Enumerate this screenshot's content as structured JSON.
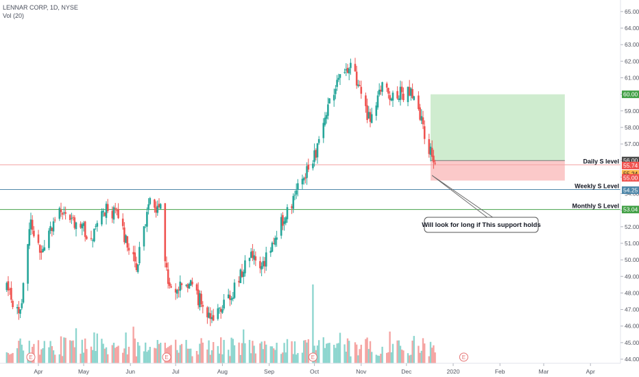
{
  "header": {
    "title": "LENNAR CORP, 1D, NYSE",
    "volume_label": "Vol (20)"
  },
  "colors": {
    "up": "#26a69a",
    "down": "#ef5350",
    "up_volume": "#8ed6cf",
    "down_volume": "#f5a5a3",
    "daily_level": "#f4a6a6",
    "weekly_level": "#4e86a8",
    "monthly_level": "#43a047",
    "target_zone": "#cfeccf",
    "stop_zone": "#fbc9c9",
    "event_marker": "#e57373"
  },
  "chart_data": {
    "type": "candlestick",
    "title": "LENNAR CORP, 1D, NYSE",
    "symbol": "LENNAR CORP",
    "interval": "1D",
    "exchange": "NYSE",
    "volume_indicator": "Vol (20)",
    "ylim": [
      43.7,
      65.6
    ],
    "y_ticks": [
      "44.00",
      "45.00",
      "46.00",
      "47.00",
      "48.00",
      "49.00",
      "50.00",
      "51.00",
      "52.00",
      "53.00",
      "54.00",
      "55.00",
      "56.00",
      "57.00",
      "58.00",
      "59.00",
      "60.00",
      "61.00",
      "62.00",
      "63.00",
      "64.00",
      "65.00"
    ],
    "x_ticks": [
      "Apr",
      "May",
      "Jun",
      "Jul",
      "Aug",
      "Sep",
      "Oct",
      "Nov",
      "Dec",
      "2020",
      "Feb",
      "Mar",
      "Apr"
    ],
    "grid": false,
    "price_path": {
      "start": "2019-03-11",
      "end": "2019-12-20",
      "keypoints": [
        [
          "2019-03-11",
          48.2
        ],
        [
          "2019-03-20",
          46.6
        ],
        [
          "2019-03-27",
          52.4
        ],
        [
          "2019-04-03",
          50.3
        ],
        [
          "2019-04-15",
          53.1
        ],
        [
          "2019-04-25",
          52.2
        ],
        [
          "2019-05-07",
          51.4
        ],
        [
          "2019-05-16",
          53.2
        ],
        [
          "2019-05-23",
          52.6
        ],
        [
          "2019-06-05",
          49.7
        ],
        [
          "2019-06-14",
          53.4
        ],
        [
          "2019-06-21",
          53.2
        ],
        [
          "2019-06-26",
          48.1
        ],
        [
          "2019-07-10",
          48.6
        ],
        [
          "2019-07-24",
          46.5
        ],
        [
          "2019-08-08",
          48.0
        ],
        [
          "2019-08-20",
          50.4
        ],
        [
          "2019-08-28",
          49.6
        ],
        [
          "2019-09-09",
          52.2
        ],
        [
          "2019-09-20",
          54.2
        ],
        [
          "2019-10-02",
          56.5
        ],
        [
          "2019-10-10",
          59.4
        ],
        [
          "2019-10-25",
          62.1
        ],
        [
          "2019-11-06",
          58.6
        ],
        [
          "2019-11-15",
          60.3
        ],
        [
          "2019-11-22",
          59.8
        ],
        [
          "2019-12-04",
          60.3
        ],
        [
          "2019-12-12",
          58.0
        ],
        [
          "2019-12-20",
          55.6
        ]
      ]
    },
    "volume_spike_date": "2019-09-30",
    "earnings_markers": [
      "2019-03-27",
      "2019-06-25",
      "2019-09-30",
      "2020-01-08"
    ],
    "levels": [
      {
        "name": "Daily S level",
        "price": 55.74,
        "color": "#f4a6a6"
      },
      {
        "name": "Weekly S Level",
        "price": 54.25,
        "color": "#4e86a8"
      },
      {
        "name": "Monthly S Level",
        "price": 53.04,
        "color": "#43a047"
      }
    ],
    "long_position": {
      "entry": 55.74,
      "target": 60.0,
      "stop": 55.24,
      "extra_tag": 56.0,
      "extra_tag_2": 55.0,
      "start_date": "2019-12-17",
      "end_date": "2020-03-15"
    },
    "annotation": "Will look for long if This support holds",
    "price_tags": [
      "60.00",
      "56.00",
      "55.74",
      "55.24",
      "55.00",
      "54.25",
      "53.04"
    ],
    "event_label": "E"
  }
}
